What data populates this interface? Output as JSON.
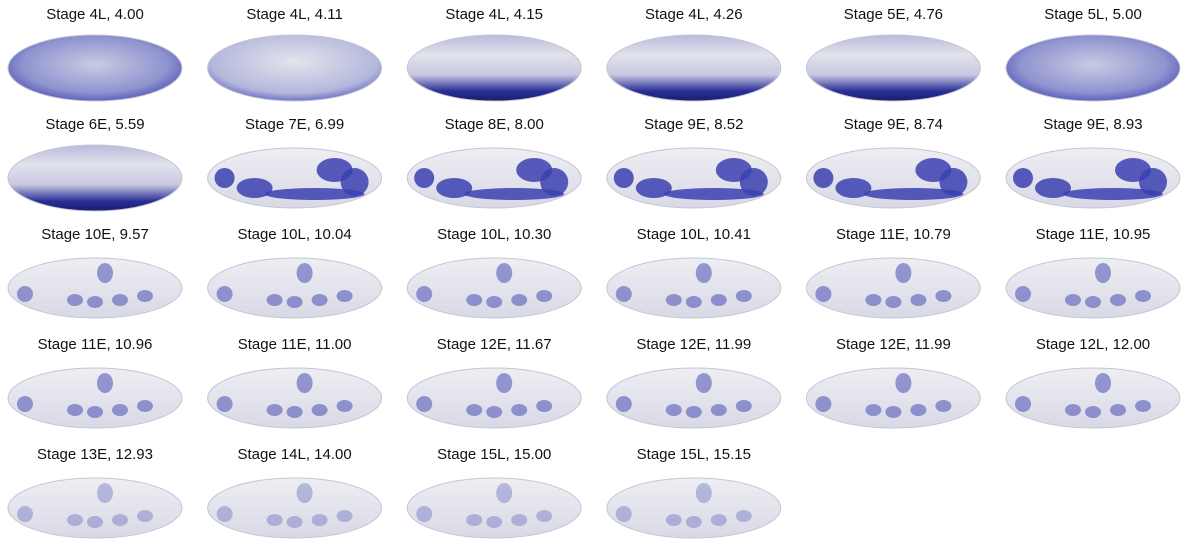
{
  "panels": [
    {
      "label": "Stage 4L, 4.00"
    },
    {
      "label": "Stage 4L, 4.11"
    },
    {
      "label": "Stage 4L, 4.15"
    },
    {
      "label": "Stage 4L, 4.26"
    },
    {
      "label": "Stage 5E, 4.76"
    },
    {
      "label": "Stage 5L, 5.00"
    },
    {
      "label": "Stage 6E, 5.59"
    },
    {
      "label": "Stage 7E, 6.99"
    },
    {
      "label": "Stage 8E, 8.00"
    },
    {
      "label": "Stage 9E, 8.52"
    },
    {
      "label": "Stage 9E, 8.74"
    },
    {
      "label": "Stage 9E, 8.93"
    },
    {
      "label": "Stage 10E, 9.57"
    },
    {
      "label": "Stage 10L, 10.04"
    },
    {
      "label": "Stage 10L, 10.30"
    },
    {
      "label": "Stage 10L, 10.41"
    },
    {
      "label": "Stage 11E, 10.79"
    },
    {
      "label": "Stage 11E, 10.95"
    },
    {
      "label": "Stage 11E, 10.96"
    },
    {
      "label": "Stage 11E, 11.00"
    },
    {
      "label": "Stage 12E, 11.67"
    },
    {
      "label": "Stage 12E, 11.99"
    },
    {
      "label": "Stage 12E, 11.99"
    },
    {
      "label": "Stage 12L, 12.00"
    },
    {
      "label": "Stage 13E, 12.93"
    },
    {
      "label": "Stage 14L, 14.00"
    },
    {
      "label": "Stage 15L, 15.00"
    },
    {
      "label": "Stage 15L, 15.15"
    }
  ]
}
